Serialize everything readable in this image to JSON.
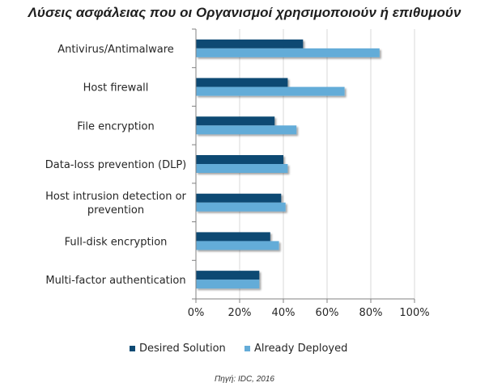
{
  "title": "Λύσεις ασφάλειας που οι Οργανισμοί χρησιμοποιούν ή επιθυμούν",
  "source": "Πηγή: IDC, 2016",
  "chart_data": {
    "type": "bar",
    "orientation": "horizontal",
    "categories": [
      "Antivirus/Antimalware",
      "Host firewall",
      "File encryption",
      "Data-loss prevention (DLP)",
      "Host intrusion detection or prevention",
      "Full-disk encryption",
      "Multi-factor authentication"
    ],
    "category_lines": [
      [
        "Antivirus/Antimalware"
      ],
      [
        "Host firewall"
      ],
      [
        "File encryption"
      ],
      [
        "Data-loss prevention (DLP)"
      ],
      [
        "Host intrusion detection or",
        "prevention"
      ],
      [
        "Full-disk encryption"
      ],
      [
        "Multi-factor authentication"
      ]
    ],
    "series": [
      {
        "name": "Desired Solution",
        "color": "#0d4a73",
        "values": [
          49,
          42,
          36,
          40,
          39,
          34,
          29
        ]
      },
      {
        "name": "Already Deployed",
        "color": "#64acd8",
        "values": [
          84,
          68,
          46,
          42,
          41,
          38,
          29
        ]
      }
    ],
    "xlim": [
      0,
      100
    ],
    "xticks": [
      "0%",
      "20%",
      "40%",
      "60%",
      "80%",
      "100%"
    ],
    "xtick_values": [
      0,
      20,
      40,
      60,
      80,
      100
    ],
    "grid": true,
    "legend_position": "bottom"
  }
}
